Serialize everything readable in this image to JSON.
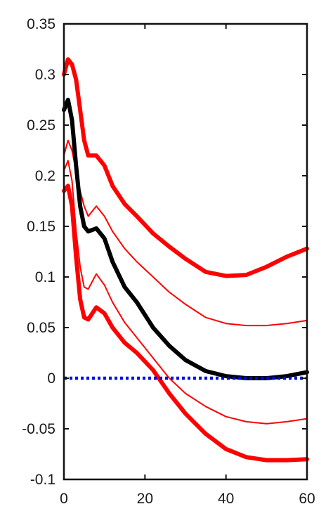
{
  "chart_data": {
    "type": "line",
    "title": "",
    "xlabel": "",
    "ylabel": "",
    "xlim": [
      0,
      60
    ],
    "ylim": [
      -0.1,
      0.35
    ],
    "x_ticks": [
      0,
      20,
      40,
      60
    ],
    "x_tick_labels": [
      "0",
      "20",
      "40",
      "60"
    ],
    "y_ticks": [
      -0.1,
      -0.05,
      0,
      0.05,
      0.1,
      0.15,
      0.2,
      0.25,
      0.3,
      0.35
    ],
    "y_tick_labels": [
      "-0.1",
      "-0.05",
      "0",
      "0.05",
      "0.1",
      "0.15",
      "0.2",
      "0.25",
      "0.3",
      "0.35"
    ],
    "series": [
      {
        "name": "upper-outer-band",
        "color": "#ff0000",
        "width": "thick",
        "style": "solid",
        "points": [
          [
            0,
            0.3
          ],
          [
            1,
            0.315
          ],
          [
            2,
            0.31
          ],
          [
            3,
            0.295
          ],
          [
            4,
            0.265
          ],
          [
            5,
            0.235
          ],
          [
            6,
            0.22
          ],
          [
            8,
            0.22
          ],
          [
            10,
            0.21
          ],
          [
            12,
            0.19
          ],
          [
            15,
            0.172
          ],
          [
            18,
            0.16
          ],
          [
            22,
            0.143
          ],
          [
            26,
            0.13
          ],
          [
            30,
            0.118
          ],
          [
            35,
            0.105
          ],
          [
            40,
            0.101
          ],
          [
            45,
            0.102
          ],
          [
            50,
            0.11
          ],
          [
            55,
            0.12
          ],
          [
            60,
            0.128
          ]
        ]
      },
      {
        "name": "upper-inner-band",
        "color": "#ff0000",
        "width": "thin",
        "style": "solid",
        "points": [
          [
            0,
            0.22
          ],
          [
            1,
            0.235
          ],
          [
            2,
            0.225
          ],
          [
            3,
            0.205
          ],
          [
            4,
            0.185
          ],
          [
            5,
            0.17
          ],
          [
            6,
            0.16
          ],
          [
            8,
            0.17
          ],
          [
            10,
            0.16
          ],
          [
            12,
            0.145
          ],
          [
            15,
            0.128
          ],
          [
            18,
            0.115
          ],
          [
            22,
            0.1
          ],
          [
            26,
            0.085
          ],
          [
            30,
            0.073
          ],
          [
            35,
            0.06
          ],
          [
            40,
            0.054
          ],
          [
            45,
            0.052
          ],
          [
            50,
            0.052
          ],
          [
            55,
            0.054
          ],
          [
            60,
            0.057
          ]
        ]
      },
      {
        "name": "estimate",
        "color": "#000000",
        "width": "thick",
        "style": "solid",
        "points": [
          [
            0,
            0.265
          ],
          [
            1,
            0.275
          ],
          [
            2,
            0.255
          ],
          [
            3,
            0.21
          ],
          [
            4,
            0.17
          ],
          [
            5,
            0.15
          ],
          [
            6,
            0.145
          ],
          [
            8,
            0.148
          ],
          [
            10,
            0.138
          ],
          [
            12,
            0.115
          ],
          [
            15,
            0.09
          ],
          [
            18,
            0.075
          ],
          [
            22,
            0.05
          ],
          [
            26,
            0.032
          ],
          [
            30,
            0.018
          ],
          [
            35,
            0.007
          ],
          [
            40,
            0.002
          ],
          [
            45,
            0.0
          ],
          [
            50,
            0.0
          ],
          [
            55,
            0.002
          ],
          [
            60,
            0.006
          ]
        ]
      },
      {
        "name": "lower-inner-band",
        "color": "#ff0000",
        "width": "thin",
        "style": "solid",
        "points": [
          [
            0,
            0.205
          ],
          [
            1,
            0.215
          ],
          [
            2,
            0.195
          ],
          [
            3,
            0.145
          ],
          [
            4,
            0.11
          ],
          [
            5,
            0.09
          ],
          [
            6,
            0.088
          ],
          [
            8,
            0.103
          ],
          [
            10,
            0.092
          ],
          [
            12,
            0.075
          ],
          [
            15,
            0.055
          ],
          [
            18,
            0.04
          ],
          [
            22,
            0.02
          ],
          [
            26,
            0.0
          ],
          [
            30,
            -0.015
          ],
          [
            35,
            -0.028
          ],
          [
            40,
            -0.038
          ],
          [
            45,
            -0.043
          ],
          [
            50,
            -0.045
          ],
          [
            55,
            -0.043
          ],
          [
            60,
            -0.04
          ]
        ]
      },
      {
        "name": "lower-outer-band",
        "color": "#ff0000",
        "width": "thick",
        "style": "solid",
        "points": [
          [
            0,
            0.185
          ],
          [
            1,
            0.19
          ],
          [
            2,
            0.17
          ],
          [
            3,
            0.12
          ],
          [
            4,
            0.078
          ],
          [
            5,
            0.06
          ],
          [
            6,
            0.058
          ],
          [
            8,
            0.07
          ],
          [
            10,
            0.064
          ],
          [
            12,
            0.05
          ],
          [
            15,
            0.035
          ],
          [
            18,
            0.025
          ],
          [
            22,
            0.008
          ],
          [
            26,
            -0.015
          ],
          [
            30,
            -0.035
          ],
          [
            35,
            -0.055
          ],
          [
            40,
            -0.07
          ],
          [
            45,
            -0.078
          ],
          [
            50,
            -0.081
          ],
          [
            55,
            -0.081
          ],
          [
            60,
            -0.08
          ]
        ]
      },
      {
        "name": "zero-line",
        "color": "#0000ff",
        "width": "medium",
        "style": "dotted",
        "points": [
          [
            0,
            0
          ],
          [
            60,
            0
          ]
        ]
      }
    ]
  }
}
